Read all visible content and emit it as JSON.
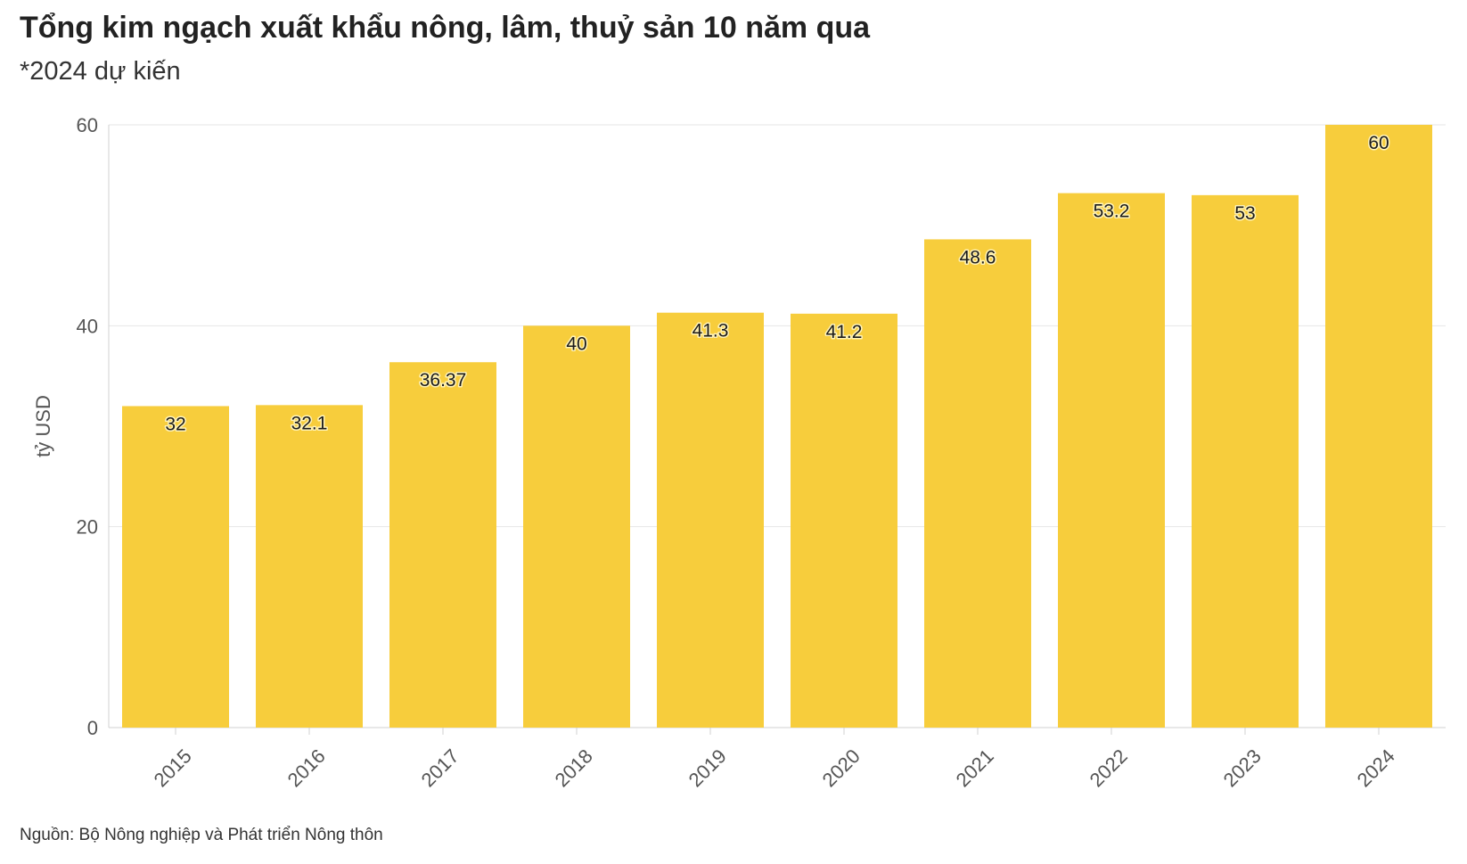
{
  "header": {
    "title": "Tổng kim ngạch xuất khẩu nông, lâm, thuỷ sản 10 năm qua",
    "subtitle": "*2024 dự kiến"
  },
  "footer": {
    "source": "Nguồn: Bộ Nông nghiệp và Phát triển Nông thôn"
  },
  "chart_data": {
    "type": "bar",
    "title": "Tổng kim ngạch xuất khẩu nông, lâm, thuỷ sản 10 năm qua",
    "subtitle": "*2024 dự kiến",
    "categories": [
      "2015",
      "2016",
      "2017",
      "2018",
      "2019",
      "2020",
      "2021",
      "2022",
      "2023",
      "2024"
    ],
    "values": [
      32,
      32.1,
      36.37,
      40,
      41.3,
      41.2,
      48.6,
      53.2,
      53,
      60
    ],
    "data_labels": [
      "32",
      "32.1",
      "36.37",
      "40",
      "41.3",
      "41.2",
      "48.6",
      "53.2",
      "53",
      "60"
    ],
    "xlabel": "",
    "ylabel": "tỷ USD",
    "ylim": [
      0,
      60
    ],
    "yticks": [
      0,
      20,
      40,
      60
    ],
    "grid": true,
    "bar_color": "#f7cd3c"
  }
}
